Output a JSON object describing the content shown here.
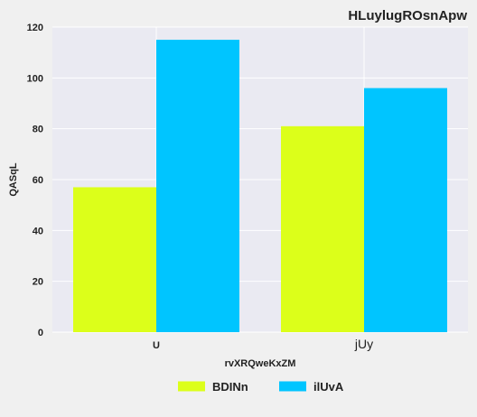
{
  "chart_data": {
    "type": "bar",
    "title": "HLuylugROsnApw",
    "xlabel": "rvXRQweKxZM",
    "ylabel": "QASqL",
    "categories": [
      "U",
      "jUy"
    ],
    "series": [
      {
        "name": "BDINn",
        "values": [
          57,
          81
        ],
        "color": "#dcff1a"
      },
      {
        "name": "ilUvA",
        "values": [
          115,
          96
        ],
        "color": "#00c5ff"
      }
    ],
    "ylim": [
      0,
      120
    ],
    "yticks": [
      0,
      20,
      40,
      60,
      80,
      100,
      120
    ],
    "grid": true,
    "legend_position": "bottom",
    "colors": {
      "plot_background": "#eaeaf2",
      "figure_background": "#f0f0f0",
      "grid": "#ffffff"
    }
  }
}
